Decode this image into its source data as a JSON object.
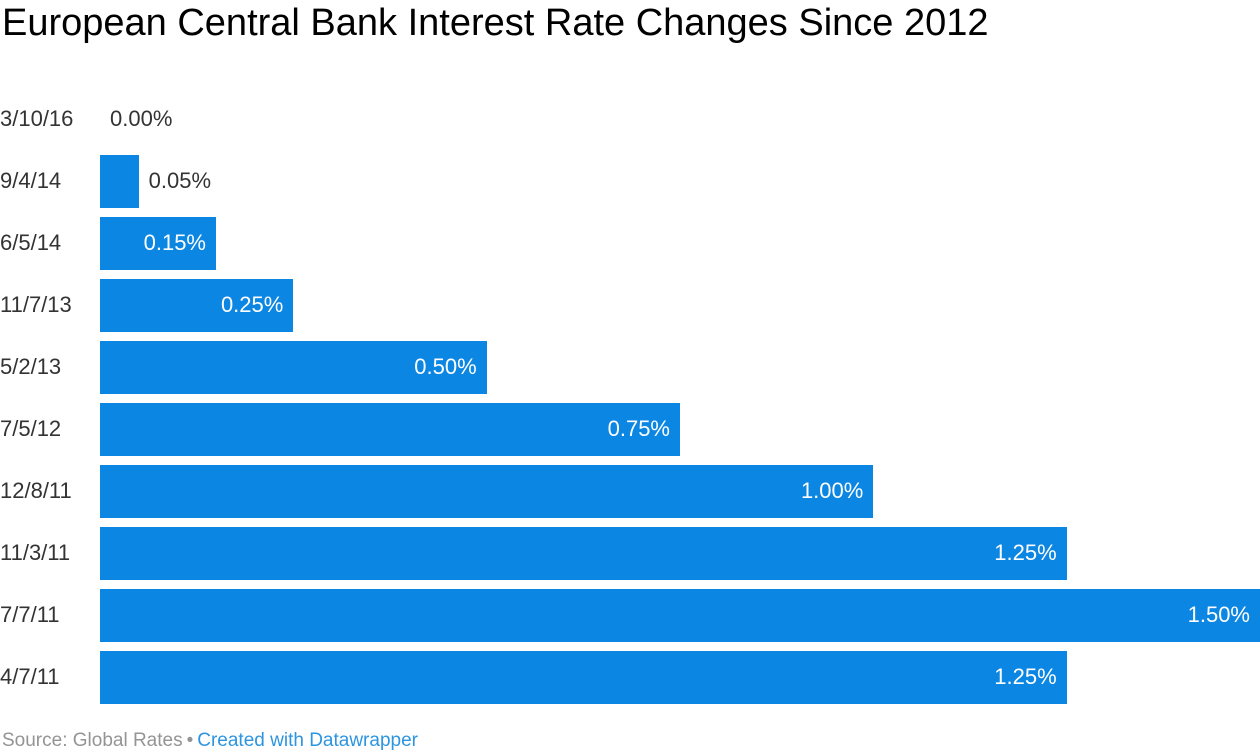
{
  "title": "European Central Bank Interest Rate Changes Since 2012",
  "footer": {
    "source_label": "Source: Global Rates",
    "separator": "•",
    "credit_label": "Created with Datawrapper"
  },
  "colors": {
    "bar": "#0b86e3",
    "label_inside": "#ffffff",
    "label_outside": "#333333",
    "footer_text": "#949494",
    "link": "#2d95e0",
    "title": "#000000",
    "background": "#ffffff"
  },
  "chart_data": {
    "type": "bar",
    "orientation": "horizontal",
    "title": "European Central Bank Interest Rate Changes Since 2012",
    "categories": [
      "3/10/16",
      "9/4/14",
      "6/5/14",
      "11/7/13",
      "5/2/13",
      "7/5/12",
      "12/8/11",
      "11/3/11",
      "7/7/11",
      "4/7/11"
    ],
    "values": [
      0.0,
      0.05,
      0.15,
      0.25,
      0.5,
      0.75,
      1.0,
      1.25,
      1.5,
      1.25
    ],
    "value_labels": [
      "0.00%",
      "0.05%",
      "0.15%",
      "0.25%",
      "0.50%",
      "0.75%",
      "1.00%",
      "1.25%",
      "1.50%",
      "1.25%"
    ],
    "label_inside": [
      false,
      false,
      true,
      true,
      true,
      true,
      true,
      true,
      true,
      true
    ],
    "xlabel": "",
    "ylabel": "",
    "xlim": [
      0,
      1.5
    ],
    "grid": false,
    "legend": false,
    "source": "Global Rates"
  }
}
